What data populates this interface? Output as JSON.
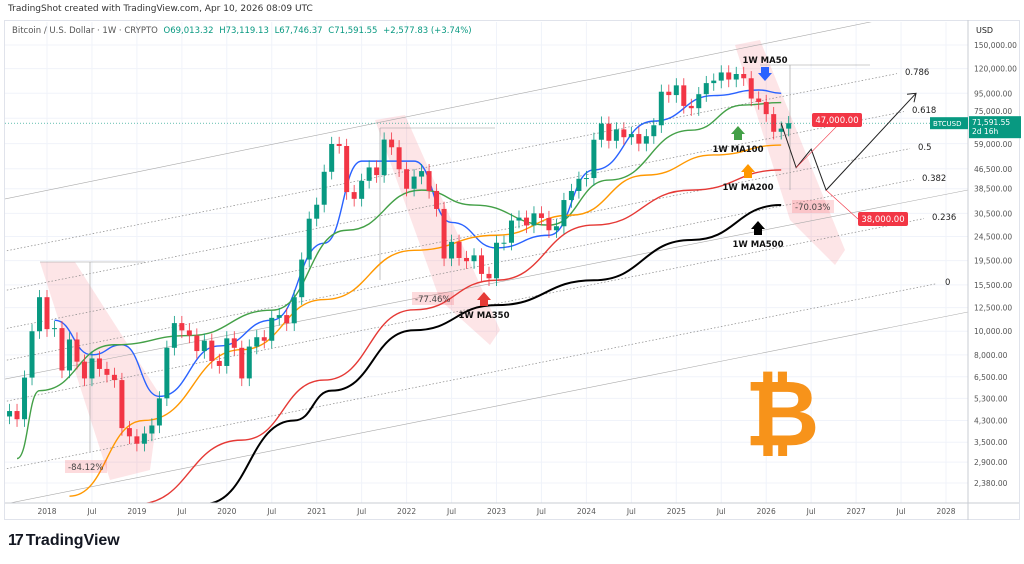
{
  "caption": "TradingShot created with TradingView.com, Apr 10, 2026 08:09 UTC",
  "legend": {
    "symbol": "Bitcoin / U.S. Dollar · 1W · CRYPTO",
    "open": "O69,013.32",
    "high": "H73,119.13",
    "low": "L67,746.37",
    "close": "C71,591.55",
    "change": "+2,577.83 (+3.74%)"
  },
  "logo": "TradingView",
  "colors": {
    "up": "#089981",
    "down": "#f23645",
    "ma50": "#2962ff",
    "ma100": "#43a047",
    "ma200": "#ff9800",
    "ma350": "#e53935",
    "ma500": "#000000",
    "target": "#f23645",
    "bitcoin": "#f7931a"
  },
  "chart_data": {
    "type": "candlestick",
    "symbol": "BTCUSD",
    "currency": "USD",
    "yscale": "log",
    "ylim": [
      1950,
      185000
    ],
    "xlim": [
      "2017-08",
      "2028-03"
    ],
    "grid": true,
    "y_ticks": [
      "150,000.00",
      "120,000.00",
      "95,000.00",
      "75,000.00",
      "59,000.00",
      "46,500.00",
      "38,500.00",
      "30,500.00",
      "24,500.00",
      "19,500.00",
      "15,500.00",
      "12,500.00",
      "10,000.00",
      "8,000.00",
      "6,500.00",
      "5,300.00",
      "4,300.00",
      "3,500.00",
      "2,900.00",
      "2,380.00"
    ],
    "y_tick_values": [
      150000,
      120000,
      95000,
      75000,
      59000,
      46500,
      38500,
      30500,
      24500,
      19500,
      15500,
      12500,
      10000,
      8000,
      6500,
      5300,
      4300,
      3500,
      2900,
      2380
    ],
    "x_ticks": [
      "2018",
      "Jul",
      "2019",
      "Jul",
      "2020",
      "Jul",
      "2021",
      "Jul",
      "2022",
      "Jul",
      "2023",
      "Jul",
      "2024",
      "Jul",
      "2025",
      "Jul",
      "2026",
      "Jul",
      "2027",
      "Jul",
      "2028"
    ],
    "x_tick_dates": [
      "2018-01",
      "2018-07",
      "2019-01",
      "2019-07",
      "2020-01",
      "2020-07",
      "2021-01",
      "2021-07",
      "2022-01",
      "2022-07",
      "2023-01",
      "2023-07",
      "2024-01",
      "2024-07",
      "2025-01",
      "2025-07",
      "2026-01",
      "2026-07",
      "2027-01",
      "2027-07",
      "2028-01"
    ],
    "price_start": "2017-08",
    "monthly_closes": [
      4700,
      4350,
      6450,
      10000,
      13800,
      10200,
      10300,
      6900,
      9250,
      7500,
      6400,
      7730,
      7000,
      6620,
      6300,
      4000,
      3700,
      3450,
      3800,
      4100,
      5300,
      8550,
      10800,
      10080,
      9600,
      8290,
      9150,
      7550,
      7200,
      9350,
      8550,
      6400,
      8650,
      9450,
      9140,
      11350,
      11650,
      10780,
      13800,
      19700,
      29000,
      33100,
      45200,
      58800,
      57700,
      37300,
      35000,
      41500,
      47100,
      43800,
      61300,
      57000,
      46300,
      38500,
      43200,
      45500,
      37700,
      31800,
      19900,
      23300,
      20000,
      19400,
      20500,
      17200,
      16500,
      23100,
      23100,
      28500,
      29300,
      27200,
      30500,
      29200,
      26000,
      27000,
      34600,
      37700,
      42300,
      42600,
      61200,
      71300,
      60600,
      67500,
      62700,
      64600,
      59000,
      63300,
      70200,
      96400,
      93400,
      102400,
      84300,
      82500,
      94200,
      104600,
      107100,
      115700,
      108200,
      114000,
      109500,
      90400,
      87500,
      78000,
      66000,
      68000,
      71591.55
    ],
    "last_price": {
      "label": "BTCUSD",
      "value": "71,591.55",
      "countdown": "2d 16h"
    },
    "moving_averages": [
      {
        "name": "1W MA50",
        "key": "ma50",
        "points": [
          [
            "2018-02",
            11100
          ],
          [
            "2018-07",
            8000
          ],
          [
            "2018-11",
            8800
          ],
          [
            "2019-04",
            5400
          ],
          [
            "2019-12",
            8700
          ],
          [
            "2020-07",
            11100
          ],
          [
            "2021-02",
            23000
          ],
          [
            "2021-07",
            50000
          ],
          [
            "2022-02",
            50000
          ],
          [
            "2022-07",
            28000
          ],
          [
            "2023-01",
            22000
          ],
          [
            "2023-08",
            24800
          ],
          [
            "2024-02",
            46000
          ],
          [
            "2024-10",
            73000
          ],
          [
            "2025-06",
            93000
          ],
          [
            "2025-12",
            98000
          ],
          [
            "2026-03",
            95000
          ]
        ]
      },
      {
        "name": "1W MA100",
        "key": "ma100",
        "points": [
          [
            "2017-09",
            3000
          ],
          [
            "2017-12",
            5700
          ],
          [
            "2018-10",
            8800
          ],
          [
            "2019-08",
            9600
          ],
          [
            "2020-07",
            12200
          ],
          [
            "2021-05",
            26000
          ],
          [
            "2022-03",
            38000
          ],
          [
            "2022-10",
            33000
          ],
          [
            "2023-08",
            27300
          ],
          [
            "2024-04",
            41800
          ],
          [
            "2025-03",
            67000
          ],
          [
            "2025-10",
            85000
          ],
          [
            "2026-03",
            87000
          ]
        ]
      },
      {
        "name": "1W MA200",
        "key": "ma200",
        "points": [
          [
            "2018-04",
            2100
          ],
          [
            "2019-02",
            4300
          ],
          [
            "2020-03",
            8400
          ],
          [
            "2021-02",
            13500
          ],
          [
            "2022-02",
            21500
          ],
          [
            "2023-01",
            24800
          ],
          [
            "2023-11",
            30000
          ],
          [
            "2024-09",
            43800
          ],
          [
            "2025-06",
            53000
          ],
          [
            "2026-03",
            58200
          ]
        ]
      },
      {
        "name": "1W MA350",
        "key": "ma350",
        "points": [
          [
            "2019-01",
            1950
          ],
          [
            "2020-03",
            3570
          ],
          [
            "2021-02",
            6300
          ],
          [
            "2022-02",
            12250
          ],
          [
            "2023-01",
            16200
          ],
          [
            "2024-02",
            27300
          ],
          [
            "2025-03",
            38000
          ],
          [
            "2026-03",
            46000
          ]
        ]
      },
      {
        "name": "1W MA500",
        "key": "ma500",
        "points": [
          [
            "2019-10",
            1950
          ],
          [
            "2020-10",
            4300
          ],
          [
            "2021-03",
            5700
          ],
          [
            "2022-02",
            10100
          ],
          [
            "2023-01",
            12800
          ],
          [
            "2024-02",
            16200
          ],
          [
            "2025-03",
            23700
          ],
          [
            "2026-03",
            33000
          ]
        ]
      }
    ],
    "fib_levels": [
      "0.786",
      "0.618",
      "0.5",
      "0.382",
      "0.236",
      "0"
    ],
    "drawdowns": [
      {
        "label": "-84.12%"
      },
      {
        "label": "-77.46%"
      },
      {
        "label": "-70.03%"
      }
    ],
    "targets": [
      {
        "label": "47,000.00",
        "value": 47000
      },
      {
        "label": "38,000.00",
        "value": 38000
      }
    ],
    "annotations": [
      "1W MA50",
      "1W MA100",
      "1W MA200",
      "1W MA350",
      "1W MA500"
    ],
    "projection": [
      [
        "2026-03",
        71591
      ],
      [
        "2026-05",
        47000
      ],
      [
        "2026-07",
        56000
      ],
      [
        "2026-09",
        38000
      ],
      [
        "2027-09",
        95000
      ]
    ]
  }
}
